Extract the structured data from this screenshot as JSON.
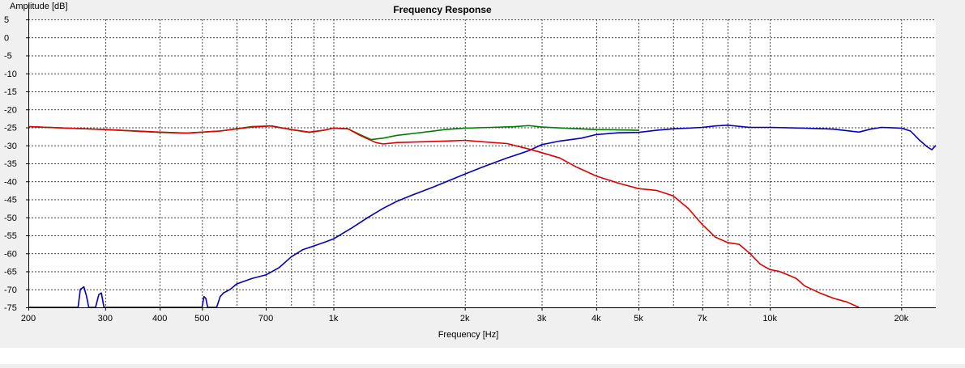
{
  "chart_data": {
    "type": "line",
    "title": "Frequency Response",
    "xlabel": "Frequency [Hz]",
    "ylabel": "Amplitude [dB]",
    "x_scale": "log",
    "xlim": [
      200,
      24000
    ],
    "ylim": [
      -75,
      5
    ],
    "grid": true,
    "background": "#ffffff",
    "y_ticks": [
      5,
      0,
      -5,
      -10,
      -15,
      -20,
      -25,
      -30,
      -35,
      -40,
      -45,
      -50,
      -55,
      -60,
      -65,
      -70,
      -75
    ],
    "x_ticks": [
      {
        "value": 200,
        "label": "200"
      },
      {
        "value": 300,
        "label": "300"
      },
      {
        "value": 400,
        "label": "400"
      },
      {
        "value": 500,
        "label": "500"
      },
      {
        "value": 700,
        "label": "700"
      },
      {
        "value": 1000,
        "label": "1k"
      },
      {
        "value": 2000,
        "label": "2k"
      },
      {
        "value": 3000,
        "label": "3k"
      },
      {
        "value": 4000,
        "label": "4k"
      },
      {
        "value": 5000,
        "label": "5k"
      },
      {
        "value": 7000,
        "label": "7k"
      },
      {
        "value": 10000,
        "label": "10k"
      },
      {
        "value": 20000,
        "label": "20k"
      }
    ],
    "minor_x_gridlines": [
      600,
      800,
      900,
      6000,
      8000,
      9000
    ],
    "series": [
      {
        "color": "#008000",
        "points": [
          [
            200,
            -24.8
          ],
          [
            300,
            -25.6
          ],
          [
            400,
            -26.4
          ],
          [
            460,
            -26.6
          ],
          [
            550,
            -26.0
          ],
          [
            650,
            -24.8
          ],
          [
            720,
            -24.6
          ],
          [
            800,
            -25.6
          ],
          [
            880,
            -26.4
          ],
          [
            950,
            -25.8
          ],
          [
            1000,
            -25.2
          ],
          [
            1080,
            -25.4
          ],
          [
            1150,
            -27.0
          ],
          [
            1220,
            -28.4
          ],
          [
            1300,
            -28.0
          ],
          [
            1400,
            -27.2
          ],
          [
            1600,
            -26.4
          ],
          [
            1800,
            -25.6
          ],
          [
            2000,
            -25.2
          ],
          [
            2300,
            -25.0
          ],
          [
            2600,
            -24.8
          ],
          [
            2800,
            -24.5
          ],
          [
            3000,
            -24.9
          ],
          [
            3500,
            -25.3
          ],
          [
            4000,
            -25.6
          ],
          [
            4500,
            -25.7
          ],
          [
            5000,
            -25.8
          ]
        ]
      },
      {
        "color": "#0000c0",
        "points": [
          [
            200,
            -75
          ],
          [
            203,
            -75
          ],
          [
            260,
            -75
          ],
          [
            263,
            -70
          ],
          [
            268,
            -69.3
          ],
          [
            272,
            -72
          ],
          [
            275,
            -75
          ],
          [
            285,
            -75
          ],
          [
            290,
            -71.5
          ],
          [
            294,
            -71
          ],
          [
            298,
            -75
          ],
          [
            500,
            -75
          ],
          [
            505,
            -72
          ],
          [
            510,
            -72.5
          ],
          [
            515,
            -75
          ],
          [
            540,
            -75
          ],
          [
            550,
            -72
          ],
          [
            560,
            -71
          ],
          [
            580,
            -70
          ],
          [
            600,
            -68.5
          ],
          [
            650,
            -67
          ],
          [
            700,
            -66
          ],
          [
            750,
            -64
          ],
          [
            800,
            -61
          ],
          [
            850,
            -59
          ],
          [
            900,
            -58
          ],
          [
            950,
            -57
          ],
          [
            1000,
            -56
          ],
          [
            1100,
            -53
          ],
          [
            1200,
            -50
          ],
          [
            1300,
            -47.5
          ],
          [
            1400,
            -45.5
          ],
          [
            1500,
            -44
          ],
          [
            1700,
            -41.5
          ],
          [
            2000,
            -38
          ],
          [
            2200,
            -36
          ],
          [
            2500,
            -33.5
          ],
          [
            2800,
            -31.5
          ],
          [
            3000,
            -29.8
          ],
          [
            3300,
            -28.8
          ],
          [
            3700,
            -28
          ],
          [
            4000,
            -27
          ],
          [
            4500,
            -26.5
          ],
          [
            5000,
            -26.4
          ],
          [
            5500,
            -25.8
          ],
          [
            6000,
            -25.4
          ],
          [
            7000,
            -25
          ],
          [
            7500,
            -24.6
          ],
          [
            8000,
            -24.4
          ],
          [
            9000,
            -25
          ],
          [
            10000,
            -25
          ],
          [
            12000,
            -25.2
          ],
          [
            14000,
            -25.5
          ],
          [
            16000,
            -26.3
          ],
          [
            17000,
            -25.5
          ],
          [
            18000,
            -25
          ],
          [
            19000,
            -25.1
          ],
          [
            20000,
            -25.2
          ],
          [
            21000,
            -26
          ],
          [
            22000,
            -28.5
          ],
          [
            23000,
            -30.5
          ],
          [
            23500,
            -31.2
          ],
          [
            24000,
            -30
          ]
        ]
      },
      {
        "color": "#e00000",
        "points": [
          [
            200,
            -24.8
          ],
          [
            300,
            -25.6
          ],
          [
            400,
            -26.3
          ],
          [
            460,
            -26.6
          ],
          [
            550,
            -26.0
          ],
          [
            650,
            -24.9
          ],
          [
            720,
            -24.6
          ],
          [
            800,
            -25.6
          ],
          [
            880,
            -26.3
          ],
          [
            950,
            -25.8
          ],
          [
            1000,
            -25.2
          ],
          [
            1080,
            -25.4
          ],
          [
            1150,
            -27.2
          ],
          [
            1250,
            -29.2
          ],
          [
            1300,
            -29.6
          ],
          [
            1400,
            -29.2
          ],
          [
            1600,
            -29.0
          ],
          [
            1800,
            -28.8
          ],
          [
            2000,
            -28.6
          ],
          [
            2200,
            -29.0
          ],
          [
            2500,
            -29.5
          ],
          [
            2800,
            -31.0
          ],
          [
            3000,
            -32.0
          ],
          [
            3300,
            -33.5
          ],
          [
            3600,
            -36.0
          ],
          [
            4000,
            -38.5
          ],
          [
            4500,
            -40.5
          ],
          [
            5000,
            -42.0
          ],
          [
            5500,
            -42.5
          ],
          [
            6000,
            -44.0
          ],
          [
            6500,
            -47.5
          ],
          [
            7000,
            -52.0
          ],
          [
            7500,
            -55.5
          ],
          [
            8000,
            -57.0
          ],
          [
            8500,
            -57.5
          ],
          [
            9000,
            -60.0
          ],
          [
            9500,
            -63.0
          ],
          [
            10000,
            -64.5
          ],
          [
            10500,
            -65.0
          ],
          [
            11000,
            -66.0
          ],
          [
            11500,
            -67.0
          ],
          [
            12000,
            -69.0
          ],
          [
            13000,
            -71.0
          ],
          [
            14000,
            -72.5
          ],
          [
            15000,
            -73.5
          ],
          [
            16000,
            -75
          ]
        ]
      }
    ]
  }
}
